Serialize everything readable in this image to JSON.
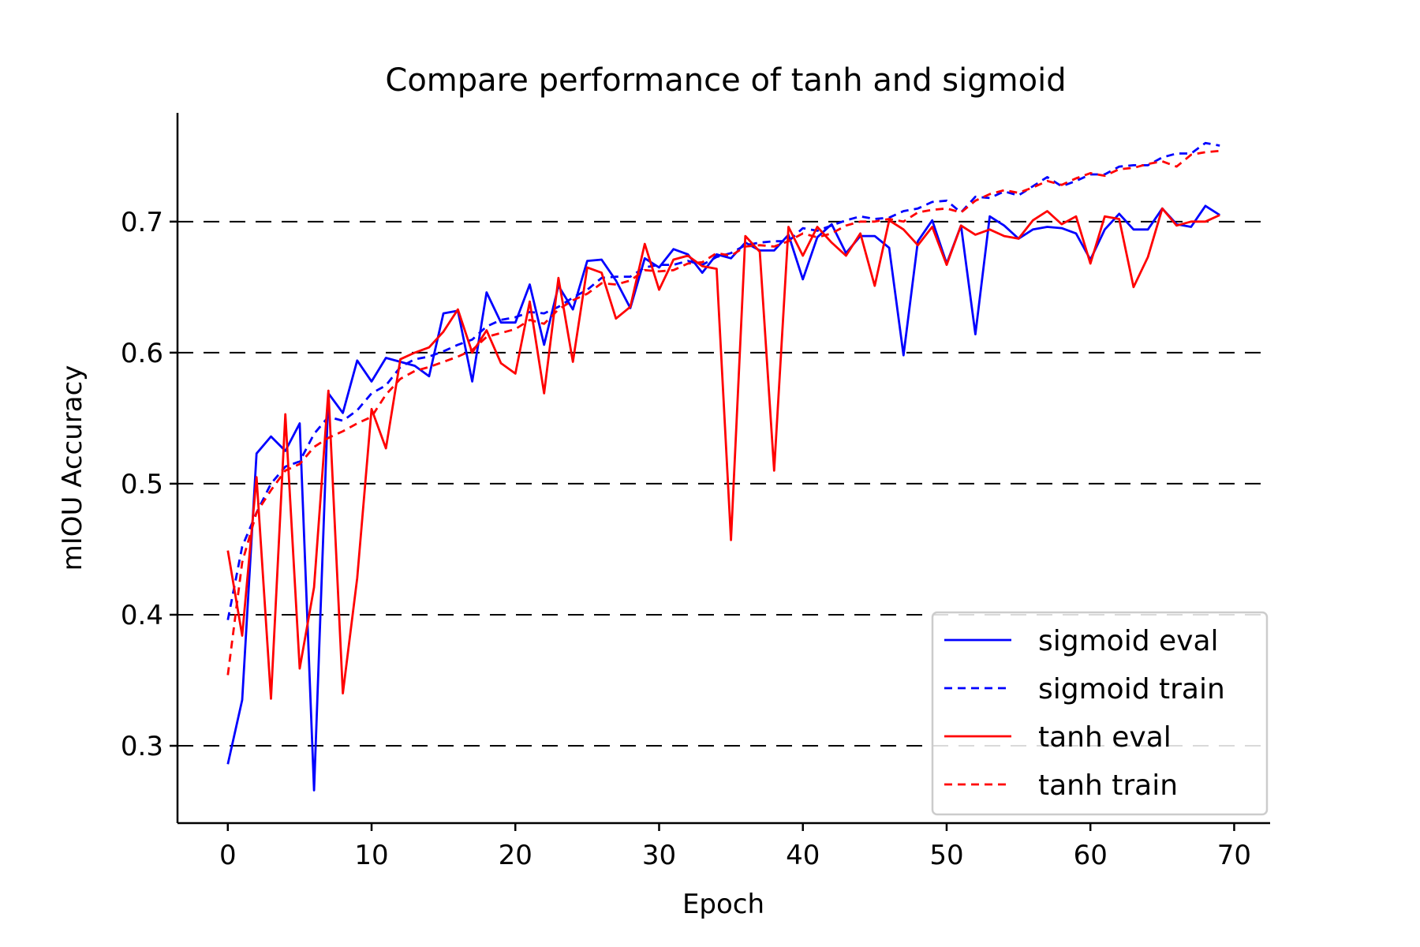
{
  "chart_data": {
    "type": "line",
    "title": "Compare performance of tanh and sigmoid",
    "xlabel": "Epoch",
    "ylabel": "mIOU Accuracy",
    "xlim": [
      -3.5,
      72.5
    ],
    "ylim": [
      0.241,
      0.783
    ],
    "xticks": [
      0,
      10,
      20,
      30,
      40,
      50,
      60,
      70
    ],
    "yticks": [
      0.3,
      0.4,
      0.5,
      0.6,
      0.7
    ],
    "ytick_labels": [
      "0.3",
      "0.4",
      "0.5",
      "0.6",
      "0.7"
    ],
    "grid": "horizontal dashed",
    "legend_position": "bottom-right",
    "series": [
      {
        "name": "sigmoid eval",
        "color": "#0000ff",
        "style": "solid",
        "x": [
          0,
          1,
          2,
          3,
          4,
          5,
          6,
          7,
          8,
          9,
          10,
          11,
          12,
          13,
          14,
          15,
          16,
          17,
          18,
          19,
          20,
          21,
          22,
          23,
          24,
          25,
          26,
          27,
          28,
          29,
          30,
          31,
          32,
          33,
          34,
          35,
          36,
          37,
          38,
          39,
          40,
          41,
          42,
          43,
          44,
          45,
          46,
          47,
          48,
          49,
          50,
          51,
          52,
          53,
          54,
          55,
          56,
          57,
          58,
          59,
          60,
          61,
          62,
          63,
          64,
          65,
          66,
          67,
          68,
          69
        ],
        "values": [
          0.286,
          0.335,
          0.523,
          0.536,
          0.525,
          0.546,
          0.266,
          0.569,
          0.554,
          0.594,
          0.578,
          0.596,
          0.593,
          0.59,
          0.582,
          0.63,
          0.632,
          0.578,
          0.646,
          0.623,
          0.623,
          0.652,
          0.606,
          0.651,
          0.633,
          0.67,
          0.671,
          0.655,
          0.634,
          0.672,
          0.665,
          0.679,
          0.675,
          0.661,
          0.675,
          0.672,
          0.684,
          0.678,
          0.678,
          0.69,
          0.656,
          0.688,
          0.698,
          0.676,
          0.689,
          0.689,
          0.68,
          0.598,
          0.685,
          0.701,
          0.668,
          0.697,
          0.614,
          0.704,
          0.697,
          0.687,
          0.694,
          0.696,
          0.695,
          0.691,
          0.671,
          0.694,
          0.706,
          0.694,
          0.694,
          0.71,
          0.698,
          0.696,
          0.712,
          0.705
        ]
      },
      {
        "name": "sigmoid train",
        "color": "#0000ff",
        "style": "dashed",
        "x": [
          0,
          1,
          2,
          3,
          4,
          5,
          6,
          7,
          8,
          9,
          10,
          11,
          12,
          13,
          14,
          15,
          16,
          17,
          18,
          19,
          20,
          21,
          22,
          23,
          24,
          25,
          26,
          27,
          28,
          29,
          30,
          31,
          32,
          33,
          34,
          35,
          36,
          37,
          38,
          39,
          40,
          41,
          42,
          43,
          44,
          45,
          46,
          47,
          48,
          49,
          50,
          51,
          52,
          53,
          54,
          55,
          56,
          57,
          58,
          59,
          60,
          61,
          62,
          63,
          64,
          65,
          66,
          67,
          68,
          69
        ],
        "values": [
          0.396,
          0.452,
          0.478,
          0.5,
          0.513,
          0.517,
          0.538,
          0.551,
          0.548,
          0.556,
          0.569,
          0.575,
          0.589,
          0.595,
          0.597,
          0.601,
          0.606,
          0.61,
          0.62,
          0.625,
          0.627,
          0.631,
          0.63,
          0.635,
          0.642,
          0.648,
          0.657,
          0.658,
          0.658,
          0.665,
          0.667,
          0.667,
          0.67,
          0.667,
          0.673,
          0.676,
          0.682,
          0.684,
          0.685,
          0.685,
          0.695,
          0.693,
          0.697,
          0.701,
          0.704,
          0.702,
          0.703,
          0.708,
          0.71,
          0.715,
          0.716,
          0.707,
          0.719,
          0.718,
          0.723,
          0.72,
          0.727,
          0.734,
          0.727,
          0.731,
          0.736,
          0.736,
          0.742,
          0.743,
          0.743,
          0.749,
          0.752,
          0.752,
          0.76,
          0.758
        ]
      },
      {
        "name": "tanh eval",
        "color": "#ff0000",
        "style": "solid",
        "x": [
          0,
          1,
          2,
          3,
          4,
          5,
          6,
          7,
          8,
          9,
          10,
          11,
          12,
          13,
          14,
          15,
          16,
          17,
          18,
          19,
          20,
          21,
          22,
          23,
          24,
          25,
          26,
          27,
          28,
          29,
          30,
          31,
          32,
          33,
          34,
          35,
          36,
          37,
          38,
          39,
          40,
          41,
          42,
          43,
          44,
          45,
          46,
          47,
          48,
          49,
          50,
          51,
          52,
          53,
          54,
          55,
          56,
          57,
          58,
          59,
          60,
          61,
          62,
          63,
          64,
          65,
          66,
          67,
          68,
          69
        ],
        "values": [
          0.449,
          0.384,
          0.505,
          0.336,
          0.553,
          0.359,
          0.421,
          0.571,
          0.34,
          0.428,
          0.557,
          0.527,
          0.595,
          0.6,
          0.604,
          0.616,
          0.633,
          0.6,
          0.617,
          0.592,
          0.584,
          0.639,
          0.569,
          0.657,
          0.593,
          0.665,
          0.661,
          0.626,
          0.635,
          0.683,
          0.648,
          0.671,
          0.674,
          0.666,
          0.664,
          0.457,
          0.689,
          0.677,
          0.51,
          0.696,
          0.674,
          0.696,
          0.684,
          0.674,
          0.691,
          0.651,
          0.701,
          0.694,
          0.682,
          0.696,
          0.667,
          0.697,
          0.69,
          0.694,
          0.689,
          0.687,
          0.701,
          0.708,
          0.698,
          0.704,
          0.668,
          0.704,
          0.702,
          0.65,
          0.673,
          0.71,
          0.697,
          0.7,
          0.7,
          0.705
        ]
      },
      {
        "name": "tanh train",
        "color": "#ff0000",
        "style": "dashed",
        "x": [
          0,
          1,
          2,
          3,
          4,
          5,
          6,
          7,
          8,
          9,
          10,
          11,
          12,
          13,
          14,
          15,
          16,
          17,
          18,
          19,
          20,
          21,
          22,
          23,
          24,
          25,
          26,
          27,
          28,
          29,
          30,
          31,
          32,
          33,
          34,
          35,
          36,
          37,
          38,
          39,
          40,
          41,
          42,
          43,
          44,
          45,
          46,
          47,
          48,
          49,
          50,
          51,
          52,
          53,
          54,
          55,
          56,
          57,
          58,
          59,
          60,
          61,
          62,
          63,
          64,
          65,
          66,
          67,
          68,
          69
        ],
        "values": [
          0.354,
          0.44,
          0.478,
          0.495,
          0.51,
          0.515,
          0.528,
          0.535,
          0.54,
          0.546,
          0.551,
          0.568,
          0.58,
          0.586,
          0.589,
          0.593,
          0.597,
          0.602,
          0.612,
          0.615,
          0.618,
          0.625,
          0.622,
          0.633,
          0.64,
          0.645,
          0.653,
          0.652,
          0.655,
          0.663,
          0.662,
          0.663,
          0.668,
          0.669,
          0.676,
          0.674,
          0.681,
          0.682,
          0.681,
          0.685,
          0.691,
          0.688,
          0.691,
          0.697,
          0.7,
          0.7,
          0.702,
          0.7,
          0.707,
          0.709,
          0.71,
          0.707,
          0.716,
          0.721,
          0.724,
          0.722,
          0.726,
          0.731,
          0.728,
          0.733,
          0.737,
          0.735,
          0.74,
          0.741,
          0.744,
          0.746,
          0.742,
          0.751,
          0.753,
          0.754
        ]
      }
    ]
  }
}
